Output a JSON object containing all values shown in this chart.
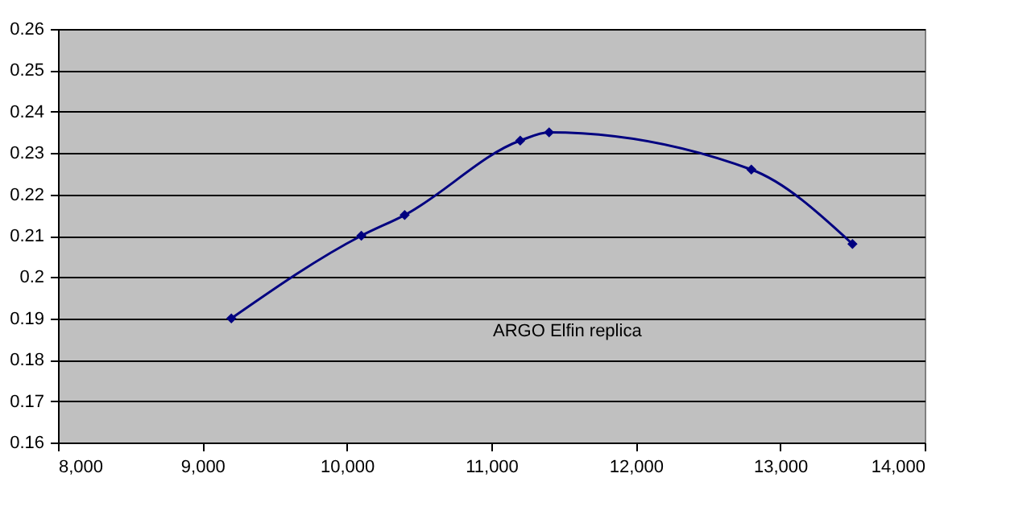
{
  "chart_data": {
    "type": "line",
    "x": [
      9200,
      10100,
      10400,
      11200,
      11400,
      12800,
      13500
    ],
    "series": [
      {
        "color": "#000080",
        "values": [
          0.19,
          0.21,
          0.215,
          0.233,
          0.235,
          0.226,
          0.208
        ]
      }
    ],
    "xlim": [
      8000,
      14000
    ],
    "xticks": [
      {
        "value": 8000,
        "label": "8,000"
      },
      {
        "value": 9000,
        "label": "9,000"
      },
      {
        "value": 10000,
        "label": "10,000"
      },
      {
        "value": 11000,
        "label": "11,000"
      },
      {
        "value": 12000,
        "label": "12,000"
      },
      {
        "value": 13000,
        "label": "13,000"
      },
      {
        "value": 14000,
        "label": "14,000"
      }
    ],
    "ylim": [
      0.16,
      0.26
    ],
    "yticks": [
      0.16,
      0.17,
      0.18,
      0.19,
      0.2,
      0.21,
      0.22,
      0.23,
      0.24,
      0.25,
      0.26
    ],
    "grid": "y",
    "marker": "diamond",
    "line_style": "solid",
    "annotations": [
      "ARGO Elfin replica"
    ]
  }
}
